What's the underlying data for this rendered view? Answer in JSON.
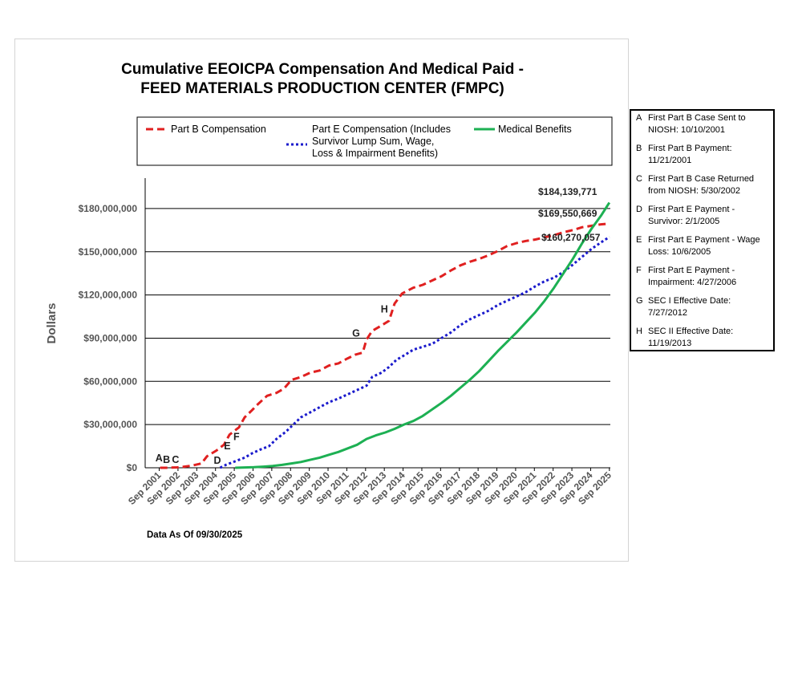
{
  "chart_data": {
    "type": "line",
    "title": [
      "Cumulative EEOICPA Compensation And Medical Paid -",
      "FEED MATERIALS PRODUCTION CENTER (FMPC)"
    ],
    "ylabel": "Dollars",
    "xlabel": "",
    "footnote": "Data As Of  09/30/2025",
    "ylim": [
      0,
      200000000
    ],
    "xlim": [
      2001.0,
      2025.8
    ],
    "x_ticks": [
      {
        "label": "Sep 2001",
        "x": 2001.75
      },
      {
        "label": "Sep 2002",
        "x": 2002.75
      },
      {
        "label": "Sep 2003",
        "x": 2003.75
      },
      {
        "label": "Sep 2004",
        "x": 2004.75
      },
      {
        "label": "Sep 2005",
        "x": 2005.75
      },
      {
        "label": "Sep 2006",
        "x": 2006.75
      },
      {
        "label": "Sep 2007",
        "x": 2007.75
      },
      {
        "label": "Sep 2008",
        "x": 2008.75
      },
      {
        "label": "Sep 2009",
        "x": 2009.75
      },
      {
        "label": "Sep 2010",
        "x": 2010.75
      },
      {
        "label": "Sep 2011",
        "x": 2011.75
      },
      {
        "label": "Sep 2012",
        "x": 2012.75
      },
      {
        "label": "Sep 2013",
        "x": 2013.75
      },
      {
        "label": "Sep 2014",
        "x": 2014.75
      },
      {
        "label": "Sep 2015",
        "x": 2015.75
      },
      {
        "label": "Sep 2016",
        "x": 2016.75
      },
      {
        "label": "Sep 2017",
        "x": 2017.75
      },
      {
        "label": "Sep 2018",
        "x": 2018.75
      },
      {
        "label": "Sep 2019",
        "x": 2019.75
      },
      {
        "label": "Sep 2020",
        "x": 2020.75
      },
      {
        "label": "Sep 2021",
        "x": 2021.75
      },
      {
        "label": "Sep 2022",
        "x": 2022.75
      },
      {
        "label": "Sep 2023",
        "x": 2023.75
      },
      {
        "label": "Sep 2024",
        "x": 2024.75
      },
      {
        "label": "Sep 2025",
        "x": 2025.75
      }
    ],
    "y_ticks": [
      {
        "label": "$0",
        "value": 0
      },
      {
        "label": "$30,000,000",
        "value": 30000000
      },
      {
        "label": "$60,000,000",
        "value": 60000000
      },
      {
        "label": "$90,000,000",
        "value": 90000000
      },
      {
        "label": "$120,000,000",
        "value": 120000000
      },
      {
        "label": "$150,000,000",
        "value": 150000000
      },
      {
        "label": "$180,000,000",
        "value": 180000000
      }
    ],
    "series": [
      {
        "name": "Part B Compensation",
        "color": "#e02020",
        "style": "dashed",
        "points": [
          [
            2001.8,
            0
          ],
          [
            2002.2,
            0
          ],
          [
            2002.7,
            300000
          ],
          [
            2003.0,
            600000
          ],
          [
            2003.5,
            1500000
          ],
          [
            2004.0,
            3000000
          ],
          [
            2004.3,
            8000000
          ],
          [
            2004.8,
            12000000
          ],
          [
            2005.2,
            16000000
          ],
          [
            2005.5,
            23000000
          ],
          [
            2006.0,
            28000000
          ],
          [
            2006.3,
            35000000
          ],
          [
            2006.7,
            40000000
          ],
          [
            2007.0,
            44000000
          ],
          [
            2007.5,
            50000000
          ],
          [
            2008.0,
            52000000
          ],
          [
            2008.4,
            55000000
          ],
          [
            2008.8,
            61000000
          ],
          [
            2009.3,
            63000000
          ],
          [
            2009.8,
            66000000
          ],
          [
            2010.3,
            67500000
          ],
          [
            2010.8,
            71000000
          ],
          [
            2011.3,
            72500000
          ],
          [
            2011.8,
            76000000
          ],
          [
            2012.2,
            78500000
          ],
          [
            2012.6,
            80000000
          ],
          [
            2012.8,
            89000000
          ],
          [
            2013.1,
            95000000
          ],
          [
            2013.5,
            98000000
          ],
          [
            2014.0,
            102000000
          ],
          [
            2014.3,
            114000000
          ],
          [
            2014.7,
            121000000
          ],
          [
            2015.3,
            125000000
          ],
          [
            2015.8,
            127000000
          ],
          [
            2016.3,
            130000000
          ],
          [
            2016.8,
            133000000
          ],
          [
            2017.3,
            137000000
          ],
          [
            2017.8,
            140500000
          ],
          [
            2018.3,
            143000000
          ],
          [
            2018.8,
            145000000
          ],
          [
            2019.3,
            147500000
          ],
          [
            2019.8,
            150500000
          ],
          [
            2020.3,
            154000000
          ],
          [
            2020.8,
            156000000
          ],
          [
            2021.3,
            157500000
          ],
          [
            2021.8,
            158500000
          ],
          [
            2022.3,
            160000000
          ],
          [
            2022.8,
            161500000
          ],
          [
            2023.3,
            163500000
          ],
          [
            2023.8,
            165000000
          ],
          [
            2024.3,
            167000000
          ],
          [
            2024.8,
            168000000
          ],
          [
            2025.3,
            169000000
          ],
          [
            2025.75,
            169550669
          ]
        ]
      },
      {
        "name": "Part E Compensation (Includes Survivor Lump Sum, Wage, Loss & Impairment Benefits)",
        "color": "#1a1acc",
        "style": "dotted",
        "points": [
          [
            2005.0,
            0
          ],
          [
            2005.3,
            2000000
          ],
          [
            2005.8,
            4500000
          ],
          [
            2006.3,
            7000000
          ],
          [
            2006.7,
            10000000
          ],
          [
            2007.2,
            13000000
          ],
          [
            2007.6,
            15000000
          ],
          [
            2008.0,
            20000000
          ],
          [
            2008.5,
            25000000
          ],
          [
            2008.9,
            30000000
          ],
          [
            2009.3,
            35000000
          ],
          [
            2009.8,
            38500000
          ],
          [
            2010.3,
            42000000
          ],
          [
            2010.8,
            45500000
          ],
          [
            2011.3,
            48000000
          ],
          [
            2011.8,
            51000000
          ],
          [
            2012.3,
            54000000
          ],
          [
            2012.8,
            57000000
          ],
          [
            2013.1,
            63000000
          ],
          [
            2013.6,
            66000000
          ],
          [
            2014.0,
            70000000
          ],
          [
            2014.4,
            75000000
          ],
          [
            2014.8,
            78000000
          ],
          [
            2015.3,
            82000000
          ],
          [
            2015.8,
            84000000
          ],
          [
            2016.3,
            86000000
          ],
          [
            2016.8,
            90000000
          ],
          [
            2017.3,
            94000000
          ],
          [
            2017.8,
            99000000
          ],
          [
            2018.3,
            103000000
          ],
          [
            2018.8,
            106000000
          ],
          [
            2019.3,
            109000000
          ],
          [
            2019.8,
            113000000
          ],
          [
            2020.3,
            116000000
          ],
          [
            2020.8,
            119000000
          ],
          [
            2021.3,
            122000000
          ],
          [
            2021.8,
            126000000
          ],
          [
            2022.3,
            129500000
          ],
          [
            2022.8,
            132000000
          ],
          [
            2023.3,
            136000000
          ],
          [
            2023.8,
            141000000
          ],
          [
            2024.3,
            146500000
          ],
          [
            2024.8,
            152000000
          ],
          [
            2025.3,
            156500000
          ],
          [
            2025.75,
            160270057
          ]
        ]
      },
      {
        "name": "Medical Benefits",
        "color": "#1db053",
        "style": "solid",
        "points": [
          [
            2005.8,
            0
          ],
          [
            2006.3,
            200000
          ],
          [
            2006.8,
            400000
          ],
          [
            2007.3,
            800000
          ],
          [
            2007.8,
            1300000
          ],
          [
            2008.3,
            2000000
          ],
          [
            2008.8,
            3000000
          ],
          [
            2009.3,
            4000000
          ],
          [
            2009.8,
            5500000
          ],
          [
            2010.3,
            7000000
          ],
          [
            2010.8,
            9000000
          ],
          [
            2011.3,
            11000000
          ],
          [
            2011.8,
            13500000
          ],
          [
            2012.3,
            16000000
          ],
          [
            2012.8,
            20000000
          ],
          [
            2013.3,
            22500000
          ],
          [
            2013.8,
            24500000
          ],
          [
            2014.3,
            27000000
          ],
          [
            2014.8,
            30000000
          ],
          [
            2015.3,
            32500000
          ],
          [
            2015.8,
            36000000
          ],
          [
            2016.3,
            40500000
          ],
          [
            2016.8,
            45000000
          ],
          [
            2017.3,
            50000000
          ],
          [
            2017.8,
            55500000
          ],
          [
            2018.3,
            61000000
          ],
          [
            2018.8,
            67000000
          ],
          [
            2019.3,
            74000000
          ],
          [
            2019.8,
            81000000
          ],
          [
            2020.3,
            87500000
          ],
          [
            2020.8,
            94000000
          ],
          [
            2021.3,
            101000000
          ],
          [
            2021.8,
            108000000
          ],
          [
            2022.3,
            116000000
          ],
          [
            2022.8,
            125000000
          ],
          [
            2023.3,
            135000000
          ],
          [
            2023.8,
            145000000
          ],
          [
            2024.3,
            156000000
          ],
          [
            2024.8,
            166000000
          ],
          [
            2025.3,
            175000000
          ],
          [
            2025.75,
            184139771
          ]
        ]
      }
    ],
    "value_labels": [
      {
        "text": "$184,139,771",
        "series": "Medical Benefits"
      },
      {
        "text": "$169,550,669",
        "series": "Part B Compensation"
      },
      {
        "text": "$160,270,057",
        "series": "Part E Compensation"
      }
    ],
    "event_markers": [
      {
        "letter": "A",
        "x": 2001.8,
        "y": 0
      },
      {
        "letter": "B",
        "x": 2002.2,
        "y": 0
      },
      {
        "letter": "C",
        "x": 2002.6,
        "y": 0
      },
      {
        "letter": "D",
        "x": 2005.0,
        "y": 0
      },
      {
        "letter": "E",
        "x": 2005.8,
        "y": 4000000
      },
      {
        "letter": "F",
        "x": 2006.3,
        "y": 8000000
      },
      {
        "letter": "G",
        "x": 2012.55,
        "y": 80000000
      },
      {
        "letter": "H",
        "x": 2013.9,
        "y": 99000000
      }
    ],
    "legend": {
      "placement": "top",
      "entries": [
        {
          "series": "Part B Compensation",
          "lines": [
            "Part B Compensation"
          ]
        },
        {
          "series": "Part E Compensation",
          "lines": [
            "Part E Compensation (Includes",
            "Survivor Lump Sum, Wage,",
            "Loss & Impairment Benefits)"
          ]
        },
        {
          "series": "Medical Benefits",
          "lines": [
            "Medical Benefits"
          ]
        }
      ]
    },
    "grid": true
  },
  "notes": [
    {
      "letter": "A",
      "lines": [
        "First Part B Case Sent to",
        "NIOSH: 10/10/2001"
      ]
    },
    {
      "letter": "B",
      "lines": [
        "First Part B Payment:",
        "11/21/2001"
      ]
    },
    {
      "letter": "C",
      "lines": [
        "First Part B Case Returned",
        "from NIOSH: 5/30/2002"
      ]
    },
    {
      "letter": "D",
      "lines": [
        "First Part E Payment -",
        "Survivor: 2/1/2005"
      ]
    },
    {
      "letter": "E",
      "lines": [
        "First Part E Payment - Wage",
        "Loss: 10/6/2005"
      ]
    },
    {
      "letter": "F",
      "lines": [
        "First Part E Payment -",
        "Impairment: 4/27/2006"
      ]
    },
    {
      "letter": "G",
      "lines": [
        "SEC I Effective Date:",
        "7/27/2012"
      ]
    },
    {
      "letter": "H",
      "lines": [
        "SEC II Effective Date:",
        "11/19/2013"
      ]
    }
  ]
}
